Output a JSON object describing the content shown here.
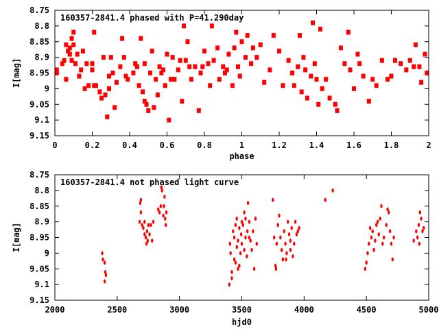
{
  "colors": {
    "points": "#ff0000",
    "axes": "#000000"
  },
  "chart_data": [
    {
      "type": "scatter",
      "title": "160357-2841.4 phased with P=41.290day",
      "xlabel": "phase",
      "ylabel": "I[mag]",
      "xlim": [
        0,
        2
      ],
      "ylim": [
        9.15,
        8.75
      ],
      "y_inverted": true,
      "xticks": [
        "0",
        "0.2",
        "0.4",
        "0.6",
        "0.8",
        "1",
        "1.2",
        "1.4",
        "1.6",
        "1.8",
        "2"
      ],
      "yticks": [
        "8.75",
        "8.8",
        "8.85",
        "8.9",
        "8.95",
        "9",
        "9.05",
        "9.1",
        "9.15"
      ],
      "marker": "square",
      "points": [
        [
          0.01,
          8.95
        ],
        [
          0.01,
          8.94
        ],
        [
          0.04,
          8.92
        ],
        [
          0.05,
          8.91
        ],
        [
          0.06,
          8.86
        ],
        [
          0.06,
          8.97
        ],
        [
          0.07,
          8.88
        ],
        [
          0.08,
          8.87
        ],
        [
          0.08,
          8.89
        ],
        [
          0.09,
          8.84
        ],
        [
          0.09,
          8.91
        ],
        [
          0.1,
          8.82
        ],
        [
          0.1,
          8.86
        ],
        [
          0.11,
          8.92
        ],
        [
          0.12,
          8.89
        ],
        [
          0.13,
          8.96
        ],
        [
          0.14,
          8.94
        ],
        [
          0.15,
          8.88
        ],
        [
          0.16,
          9.0
        ],
        [
          0.17,
          8.92
        ],
        [
          0.18,
          8.99
        ],
        [
          0.2,
          8.94
        ],
        [
          0.2,
          8.92
        ],
        [
          0.21,
          8.82
        ],
        [
          0.21,
          8.99
        ],
        [
          0.22,
          8.99
        ],
        [
          0.24,
          9.01
        ],
        [
          0.25,
          9.03
        ],
        [
          0.26,
          8.9
        ],
        [
          0.27,
          9.02
        ],
        [
          0.28,
          9.09
        ],
        [
          0.29,
          9.0
        ],
        [
          0.29,
          8.96
        ],
        [
          0.3,
          8.9
        ],
        [
          0.31,
          8.95
        ],
        [
          0.32,
          9.06
        ],
        [
          0.33,
          8.98
        ],
        [
          0.35,
          8.93
        ],
        [
          0.36,
          8.84
        ],
        [
          0.37,
          8.9
        ],
        [
          0.38,
          8.96
        ],
        [
          0.39,
          8.97
        ],
        [
          0.42,
          8.95
        ],
        [
          0.43,
          8.92
        ],
        [
          0.44,
          8.93
        ],
        [
          0.45,
          8.99
        ],
        [
          0.46,
          8.84
        ],
        [
          0.47,
          9.01
        ],
        [
          0.48,
          9.04
        ],
        [
          0.48,
          8.92
        ],
        [
          0.49,
          9.05
        ],
        [
          0.5,
          9.07
        ],
        [
          0.51,
          8.95
        ],
        [
          0.52,
          8.88
        ],
        [
          0.53,
          9.06
        ],
        [
          0.54,
          8.97
        ],
        [
          0.55,
          9.02
        ],
        [
          0.56,
          8.93
        ],
        [
          0.57,
          8.95
        ],
        [
          0.58,
          8.94
        ],
        [
          0.59,
          8.99
        ],
        [
          0.6,
          8.89
        ],
        [
          0.61,
          9.1
        ],
        [
          0.62,
          8.97
        ],
        [
          0.63,
          8.9
        ],
        [
          0.64,
          8.97
        ],
        [
          0.66,
          8.94
        ],
        [
          0.67,
          8.91
        ],
        [
          0.68,
          9.04
        ],
        [
          0.69,
          8.8
        ],
        [
          0.7,
          8.91
        ],
        [
          0.71,
          8.85
        ],
        [
          0.72,
          8.93
        ],
        [
          0.73,
          8.97
        ],
        [
          0.75,
          8.93
        ],
        [
          0.77,
          9.07
        ],
        [
          0.78,
          8.95
        ],
        [
          0.79,
          8.93
        ],
        [
          0.8,
          8.88
        ],
        [
          0.82,
          8.92
        ],
        [
          0.83,
          8.99
        ],
        [
          0.84,
          8.8
        ],
        [
          0.85,
          8.91
        ],
        [
          0.87,
          8.87
        ],
        [
          0.88,
          8.97
        ],
        [
          0.9,
          8.93
        ],
        [
          0.91,
          8.95
        ],
        [
          0.92,
          8.94
        ],
        [
          0.93,
          8.89
        ],
        [
          0.95,
          8.99
        ],
        [
          0.96,
          8.87
        ],
        [
          0.97,
          8.82
        ],
        [
          0.98,
          8.93
        ],
        [
          0.99,
          8.96
        ],
        [
          1.0,
          8.85
        ],
        [
          1.02,
          8.9
        ],
        [
          1.03,
          8.83
        ],
        [
          1.05,
          8.92
        ],
        [
          1.06,
          8.87
        ],
        [
          1.08,
          8.9
        ],
        [
          1.1,
          8.86
        ],
        [
          1.12,
          8.98
        ],
        [
          1.15,
          8.94
        ],
        [
          1.17,
          8.83
        ],
        [
          1.2,
          8.88
        ],
        [
          1.22,
          8.99
        ],
        [
          1.25,
          8.91
        ],
        [
          1.27,
          8.95
        ],
        [
          1.28,
          8.99
        ],
        [
          1.3,
          8.93
        ],
        [
          1.31,
          8.83
        ],
        [
          1.32,
          9.01
        ],
        [
          1.33,
          8.9
        ],
        [
          1.34,
          8.94
        ],
        [
          1.35,
          9.03
        ],
        [
          1.37,
          8.96
        ],
        [
          1.38,
          8.79
        ],
        [
          1.39,
          8.92
        ],
        [
          1.4,
          8.97
        ],
        [
          1.41,
          9.05
        ],
        [
          1.42,
          8.81
        ],
        [
          1.43,
          9.0
        ],
        [
          1.45,
          8.97
        ],
        [
          1.47,
          9.03
        ],
        [
          1.5,
          9.05
        ],
        [
          1.51,
          9.07
        ],
        [
          1.53,
          8.87
        ],
        [
          1.55,
          8.92
        ],
        [
          1.57,
          8.82
        ],
        [
          1.58,
          8.94
        ],
        [
          1.6,
          9.0
        ],
        [
          1.62,
          8.89
        ],
        [
          1.63,
          8.92
        ],
        [
          1.65,
          8.96
        ],
        [
          1.68,
          9.04
        ],
        [
          1.7,
          8.97
        ],
        [
          1.72,
          8.99
        ],
        [
          1.75,
          8.91
        ],
        [
          1.78,
          8.97
        ],
        [
          1.8,
          8.96
        ],
        [
          1.82,
          8.91
        ],
        [
          1.85,
          8.92
        ],
        [
          1.88,
          8.94
        ],
        [
          1.9,
          8.91
        ],
        [
          1.92,
          8.93
        ],
        [
          1.93,
          8.86
        ],
        [
          1.95,
          8.93
        ],
        [
          1.96,
          8.98
        ],
        [
          1.98,
          8.89
        ],
        [
          1.99,
          8.95
        ]
      ]
    },
    {
      "type": "scatter",
      "title": "160357-2841.4 not phased light curve",
      "xlabel": "hjd0",
      "ylabel": "I[mag]",
      "xlim": [
        2000,
        5000
      ],
      "ylim": [
        9.15,
        8.75
      ],
      "y_inverted": true,
      "xticks": [
        "2000",
        "2500",
        "3000",
        "3500",
        "4000",
        "4500",
        "5000"
      ],
      "yticks": [
        "8.75",
        "8.8",
        "8.85",
        "8.9",
        "8.95",
        "9",
        "9.05",
        "9.1",
        "9.15"
      ],
      "marker": "dot",
      "points": [
        [
          2380,
          9.0
        ],
        [
          2385,
          9.02
        ],
        [
          2400,
          9.03
        ],
        [
          2405,
          9.06
        ],
        [
          2410,
          9.07
        ],
        [
          2400,
          9.09
        ],
        [
          2680,
          8.9
        ],
        [
          2685,
          8.84
        ],
        [
          2690,
          8.83
        ],
        [
          2690,
          8.87
        ],
        [
          2700,
          8.91
        ],
        [
          2710,
          8.92
        ],
        [
          2720,
          8.9
        ],
        [
          2730,
          8.95
        ],
        [
          2735,
          8.97
        ],
        [
          2740,
          8.93
        ],
        [
          2750,
          8.91
        ],
        [
          2760,
          8.94
        ],
        [
          2770,
          8.91
        ],
        [
          2780,
          8.96
        ],
        [
          2790,
          8.9
        ],
        [
          2720,
          8.94
        ],
        [
          2745,
          8.96
        ],
        [
          2830,
          8.86
        ],
        [
          2840,
          8.87
        ],
        [
          2850,
          8.85
        ],
        [
          2860,
          8.8
        ],
        [
          2870,
          8.88
        ],
        [
          2880,
          8.82
        ],
        [
          2885,
          8.89
        ],
        [
          2890,
          8.91
        ],
        [
          2875,
          8.85
        ],
        [
          2895,
          8.87
        ],
        [
          2855,
          8.79
        ],
        [
          3400,
          9.1
        ],
        [
          3405,
          8.97
        ],
        [
          3410,
          9.0
        ],
        [
          3420,
          9.06
        ],
        [
          3430,
          8.93
        ],
        [
          3440,
          8.95
        ],
        [
          3450,
          9.03
        ],
        [
          3460,
          8.89
        ],
        [
          3470,
          8.96
        ],
        [
          3480,
          8.92
        ],
        [
          3490,
          9.0
        ],
        [
          3495,
          8.94
        ],
        [
          3500,
          8.97
        ],
        [
          3510,
          8.91
        ],
        [
          3520,
          8.87
        ],
        [
          3530,
          8.95
        ],
        [
          3540,
          9.01
        ],
        [
          3545,
          8.93
        ],
        [
          3550,
          8.84
        ],
        [
          3560,
          8.9
        ],
        [
          3570,
          8.96
        ],
        [
          3580,
          8.99
        ],
        [
          3590,
          8.93
        ],
        [
          3600,
          9.05
        ],
        [
          3610,
          8.89
        ],
        [
          3620,
          8.97
        ],
        [
          3420,
          9.08
        ],
        [
          3440,
          9.02
        ],
        [
          3460,
          8.98
        ],
        [
          3480,
          9.04
        ],
        [
          3500,
          8.9
        ],
        [
          3520,
          8.99
        ],
        [
          3470,
          9.05
        ],
        [
          3530,
          8.89
        ],
        [
          3560,
          8.95
        ],
        [
          3450,
          8.91
        ],
        [
          3750,
          8.83
        ],
        [
          3760,
          8.95
        ],
        [
          3770,
          9.04
        ],
        [
          3780,
          8.97
        ],
        [
          3790,
          8.91
        ],
        [
          3800,
          8.88
        ],
        [
          3810,
          8.95
        ],
        [
          3820,
          8.99
        ],
        [
          3830,
          9.02
        ],
        [
          3840,
          8.93
        ],
        [
          3850,
          8.97
        ],
        [
          3860,
          9.0
        ],
        [
          3870,
          8.9
        ],
        [
          3880,
          8.94
        ],
        [
          3890,
          8.96
        ],
        [
          3900,
          8.92
        ],
        [
          3910,
          9.01
        ],
        [
          3920,
          8.97
        ],
        [
          3930,
          8.9
        ],
        [
          3940,
          8.94
        ],
        [
          3950,
          8.93
        ],
        [
          3960,
          8.92
        ],
        [
          3775,
          9.05
        ],
        [
          3855,
          9.02
        ],
        [
          3890,
          8.99
        ],
        [
          4170,
          8.83
        ],
        [
          4230,
          8.8
        ],
        [
          4490,
          9.05
        ],
        [
          4500,
          9.03
        ],
        [
          4510,
          9.0
        ],
        [
          4520,
          8.97
        ],
        [
          4530,
          8.92
        ],
        [
          4540,
          8.95
        ],
        [
          4550,
          8.93
        ],
        [
          4560,
          8.99
        ],
        [
          4570,
          8.96
        ],
        [
          4580,
          8.91
        ],
        [
          4590,
          8.9
        ],
        [
          4600,
          8.94
        ],
        [
          4610,
          8.89
        ],
        [
          4620,
          8.85
        ],
        [
          4630,
          8.97
        ],
        [
          4640,
          8.95
        ],
        [
          4660,
          8.91
        ],
        [
          4670,
          8.86
        ],
        [
          4680,
          8.87
        ],
        [
          4690,
          8.93
        ],
        [
          4700,
          8.97
        ],
        [
          4710,
          9.02
        ],
        [
          4720,
          8.95
        ],
        [
          4880,
          8.96
        ],
        [
          4900,
          8.93
        ],
        [
          4910,
          8.95
        ],
        [
          4920,
          8.91
        ],
        [
          4930,
          8.87
        ],
        [
          4940,
          8.89
        ],
        [
          4950,
          8.93
        ],
        [
          4960,
          8.92
        ],
        [
          4925,
          8.97
        ]
      ]
    }
  ]
}
